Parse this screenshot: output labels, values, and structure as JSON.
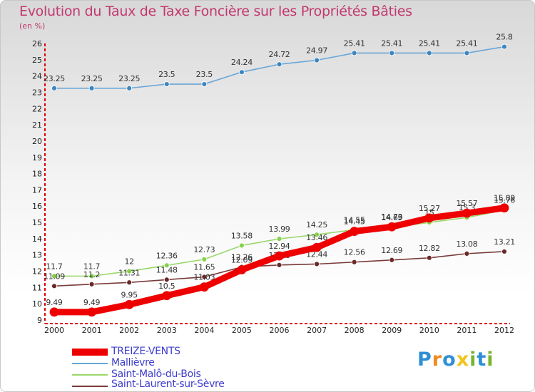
{
  "title": "Evolution du Taux de Taxe Foncière sur les Propriétés Bâties",
  "unit": "(en %)",
  "logo": {
    "text": "Proxiti",
    "colors": [
      "#2f8fd6",
      "#f28a1e",
      "#f0c419",
      "#77b52b"
    ]
  },
  "chart_data": {
    "type": "line",
    "x": [
      2000,
      2001,
      2002,
      2003,
      2004,
      2005,
      2006,
      2007,
      2008,
      2009,
      2010,
      2011,
      2012
    ],
    "ylim": [
      9,
      26
    ],
    "yticks": [
      9,
      10,
      11,
      12,
      13,
      14,
      15,
      16,
      17,
      18,
      19,
      20,
      21,
      22,
      23,
      24,
      25,
      26
    ],
    "grid": false,
    "legend_position": "bottom-left",
    "series": [
      {
        "name": "Mallièvre",
        "color": "#6aa6d8",
        "marker": "#3e86c0",
        "values": [
          23.25,
          23.25,
          23.25,
          23.5,
          23.5,
          24.24,
          24.72,
          24.97,
          25.41,
          25.41,
          25.41,
          25.41,
          25.8
        ],
        "labels": [
          "23.25",
          "23.25",
          "23.25",
          "23.5",
          "23.5",
          "24.24",
          "24.72",
          "24.97",
          "25.41",
          "25.41",
          "25.41",
          "25.41",
          "25.8"
        ]
      },
      {
        "name": "Saint-Malô-du-Bois",
        "color": "#9ad86a",
        "marker": "#86d14a",
        "values": [
          11.7,
          11.7,
          12,
          12.36,
          12.73,
          13.58,
          13.99,
          14.25,
          14.55,
          14.69,
          15.0,
          15.3,
          15.76
        ],
        "labels": [
          "11.7",
          "11.7",
          "12",
          "12.36",
          "12.73",
          "13.58",
          "13.99",
          "14.25",
          "14.55",
          "14.69",
          "15",
          "15.3",
          "15.76"
        ]
      },
      {
        "name": "Saint-Laurent-sur-Sèvre",
        "color": "#7a3b3b",
        "marker": "#6a2828",
        "values": [
          11.09,
          11.2,
          11.31,
          11.48,
          11.65,
          12.26,
          12.38,
          12.44,
          12.56,
          12.69,
          12.82,
          13.08,
          13.21
        ],
        "labels": [
          "11.09",
          "11.2",
          "11.31",
          "11.48",
          "11.65",
          "12.26",
          "12.38",
          "12.44",
          "12.56",
          "12.69",
          "12.82",
          "13.08",
          "13.21"
        ]
      },
      {
        "name": "TREIZE-VENTS",
        "color": "#ee0000",
        "marker": "#ee0000",
        "values": [
          9.49,
          9.49,
          9.95,
          10.5,
          11.03,
          12.09,
          12.94,
          13.46,
          14.45,
          14.73,
          15.27,
          15.57,
          15.89
        ],
        "labels": [
          "9.49",
          "9.49",
          "9.95",
          "10.5",
          "11.03",
          "12.09",
          "12.94",
          "13.46",
          "14.45",
          "14.73",
          "15.27",
          "15.57",
          "15.89"
        ]
      }
    ],
    "legend_order": [
      "TREIZE-VENTS",
      "Mallièvre",
      "Saint-Malô-du-Bois",
      "Saint-Laurent-sur-Sèvre"
    ]
  }
}
